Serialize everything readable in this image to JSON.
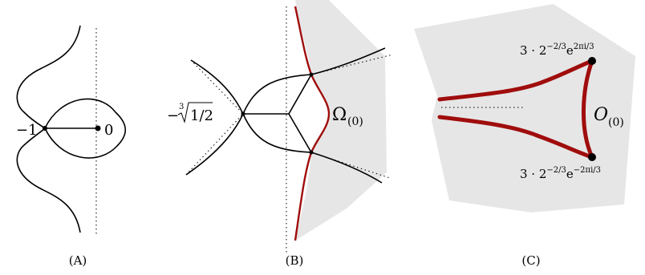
{
  "panels": {
    "a": {
      "caption": "(A)",
      "point_left": "−1",
      "point_right": "0"
    },
    "b": {
      "caption": "(B)",
      "point_left_prefix": "−",
      "point_left_root_index": "3",
      "point_left_radicand": "1/2",
      "region_label_main": "Ω",
      "region_label_sub": "(0)"
    },
    "c": {
      "caption": "(C)",
      "top_point_prefix": "3 · 2",
      "top_point_exp": "−2/3",
      "top_point_e": "e",
      "top_point_e_exp": "2πi/3",
      "bottom_point_prefix": "3 · 2",
      "bottom_point_exp": "−2/3",
      "bottom_point_e": "e",
      "bottom_point_e_exp": "−2πi/3",
      "region_label_main": "O",
      "region_label_sub": "(0)"
    }
  },
  "colors": {
    "accent_red": "#a00d0d",
    "shade_gray": "#e6e6e6"
  }
}
